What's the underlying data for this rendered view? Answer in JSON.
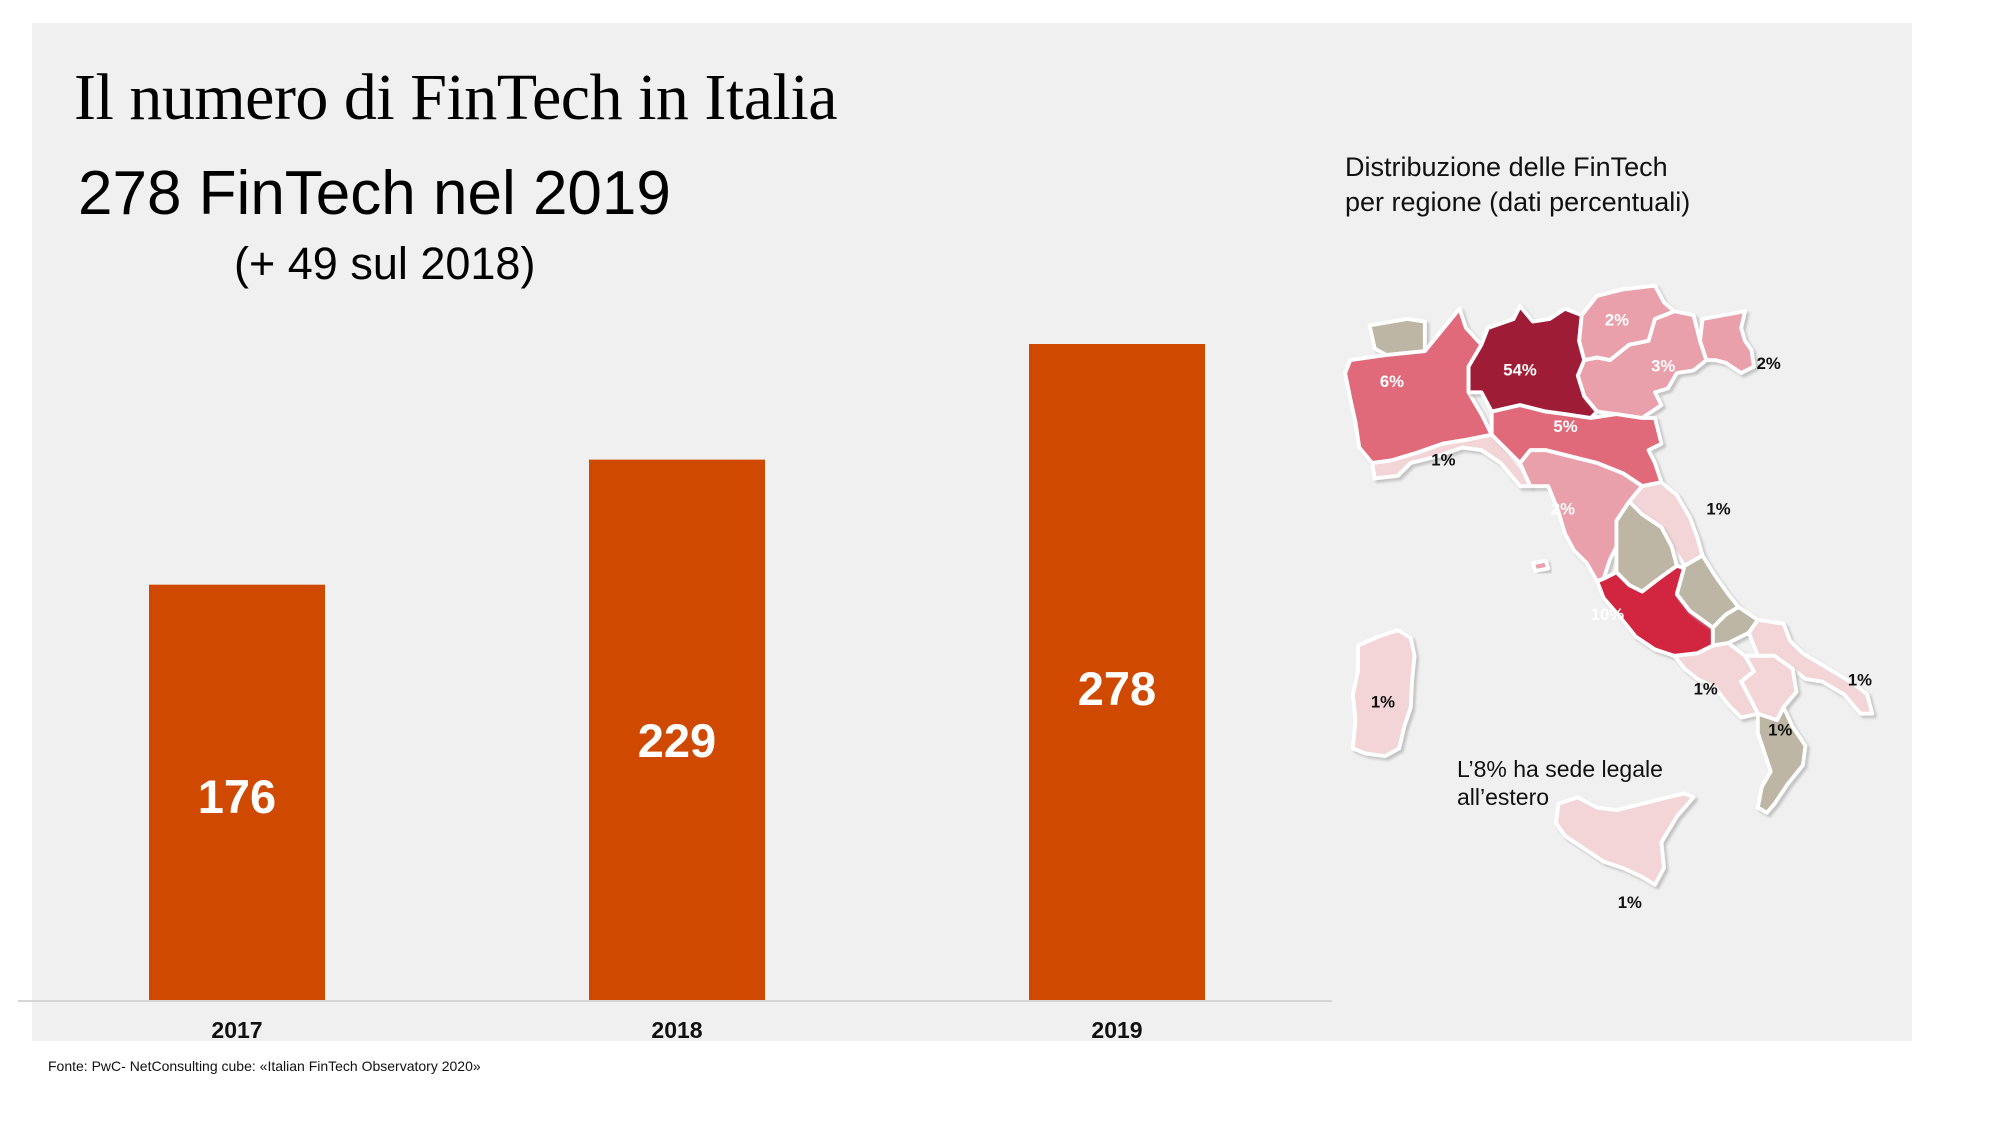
{
  "header": {
    "title": "Il numero di FinTech in Italia",
    "subtitle": "278 FinTech nel 2019",
    "subnote": "(+ 49 sul 2018)"
  },
  "map": {
    "title": "Distribuzione delle FinTech per regione (dati percentuali)",
    "note": "L’8% ha sede legale all’estero",
    "colors": {
      "dark": "#9e1f35",
      "red": "#d2283f",
      "mid": "#e06a7a",
      "light_mid": "#e9a0aa",
      "light": "#f3d5d8",
      "none": "#beb6a4"
    },
    "regions": [
      {
        "name": "Valle d'Aosta",
        "label": "",
        "tone": "none"
      },
      {
        "name": "Piemonte",
        "label": "6%",
        "tone": "mid"
      },
      {
        "name": "Lombardia",
        "label": "54%",
        "tone": "dark"
      },
      {
        "name": "Trentino-Alto Adige",
        "label": "2%",
        "tone": "light_mid"
      },
      {
        "name": "Veneto",
        "label": "3%",
        "tone": "light_mid"
      },
      {
        "name": "Friuli-Venezia Giulia",
        "label": "2%",
        "tone": "light_mid"
      },
      {
        "name": "Liguria",
        "label": "1%",
        "tone": "light"
      },
      {
        "name": "Emilia-Romagna",
        "label": "5%",
        "tone": "mid"
      },
      {
        "name": "Toscana",
        "label": "2%",
        "tone": "light_mid"
      },
      {
        "name": "Marche",
        "label": "1%",
        "tone": "light"
      },
      {
        "name": "Umbria",
        "label": "",
        "tone": "none"
      },
      {
        "name": "Lazio",
        "label": "10%",
        "tone": "red"
      },
      {
        "name": "Abruzzo",
        "label": "",
        "tone": "none"
      },
      {
        "name": "Molise",
        "label": "",
        "tone": "none"
      },
      {
        "name": "Campania",
        "label": "1%",
        "tone": "light"
      },
      {
        "name": "Puglia",
        "label": "1%",
        "tone": "light"
      },
      {
        "name": "Basilicata",
        "label": "1%",
        "tone": "light"
      },
      {
        "name": "Calabria",
        "label": "",
        "tone": "none"
      },
      {
        "name": "Sicilia",
        "label": "1%",
        "tone": "light"
      },
      {
        "name": "Sardegna",
        "label": "1%",
        "tone": "light"
      }
    ]
  },
  "source": "Fonte: PwC- NetConsulting cube: «Italian FinTech Observatory 2020»",
  "chart_data": {
    "type": "bar",
    "title": "Il numero di FinTech in Italia",
    "subtitle": "278 FinTech nel 2019 (+ 49 sul 2018)",
    "categories": [
      "2017",
      "2018",
      "2019"
    ],
    "values": [
      176,
      229,
      278
    ],
    "xlabel": "",
    "ylabel": "",
    "ylim": [
      0,
      278
    ],
    "grid": false,
    "legend": "none",
    "bar_color": "#cf4a00",
    "data_labels": [
      "176",
      "229",
      "278"
    ]
  }
}
